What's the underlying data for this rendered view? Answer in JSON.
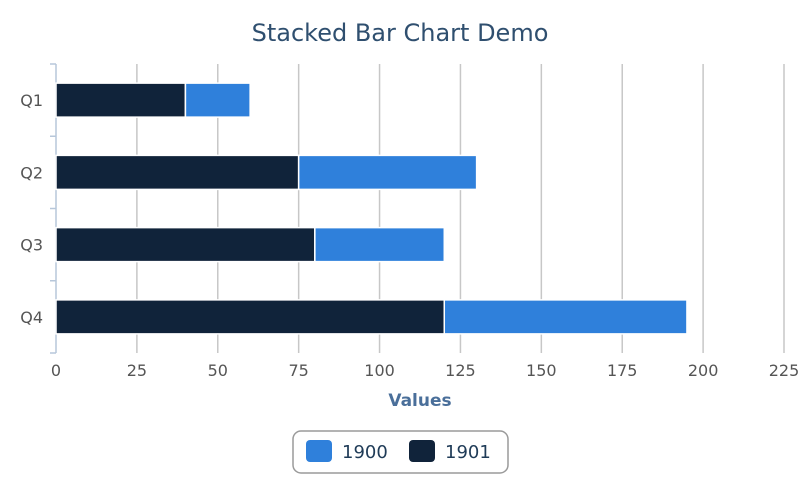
{
  "chart_data": {
    "type": "bar",
    "orientation": "horizontal",
    "stacked": true,
    "title": "Stacked Bar Chart Demo",
    "xlabel": "Values",
    "ylabel": "",
    "categories": [
      "Q1",
      "Q2",
      "Q3",
      "Q4"
    ],
    "series": [
      {
        "name": "1901",
        "color": "#10233a",
        "values": [
          40,
          75,
          80,
          120
        ]
      },
      {
        "name": "1900",
        "color": "#2f80db",
        "values": [
          20,
          55,
          40,
          75
        ]
      }
    ],
    "legend_order": [
      "1900",
      "1901"
    ],
    "xlim": [
      0,
      225
    ],
    "x_ticks": [
      "0",
      "25",
      "50",
      "75",
      "100",
      "125",
      "150",
      "175",
      "200",
      "225"
    ],
    "grid": "vertical",
    "legend_position": "bottom-center"
  }
}
